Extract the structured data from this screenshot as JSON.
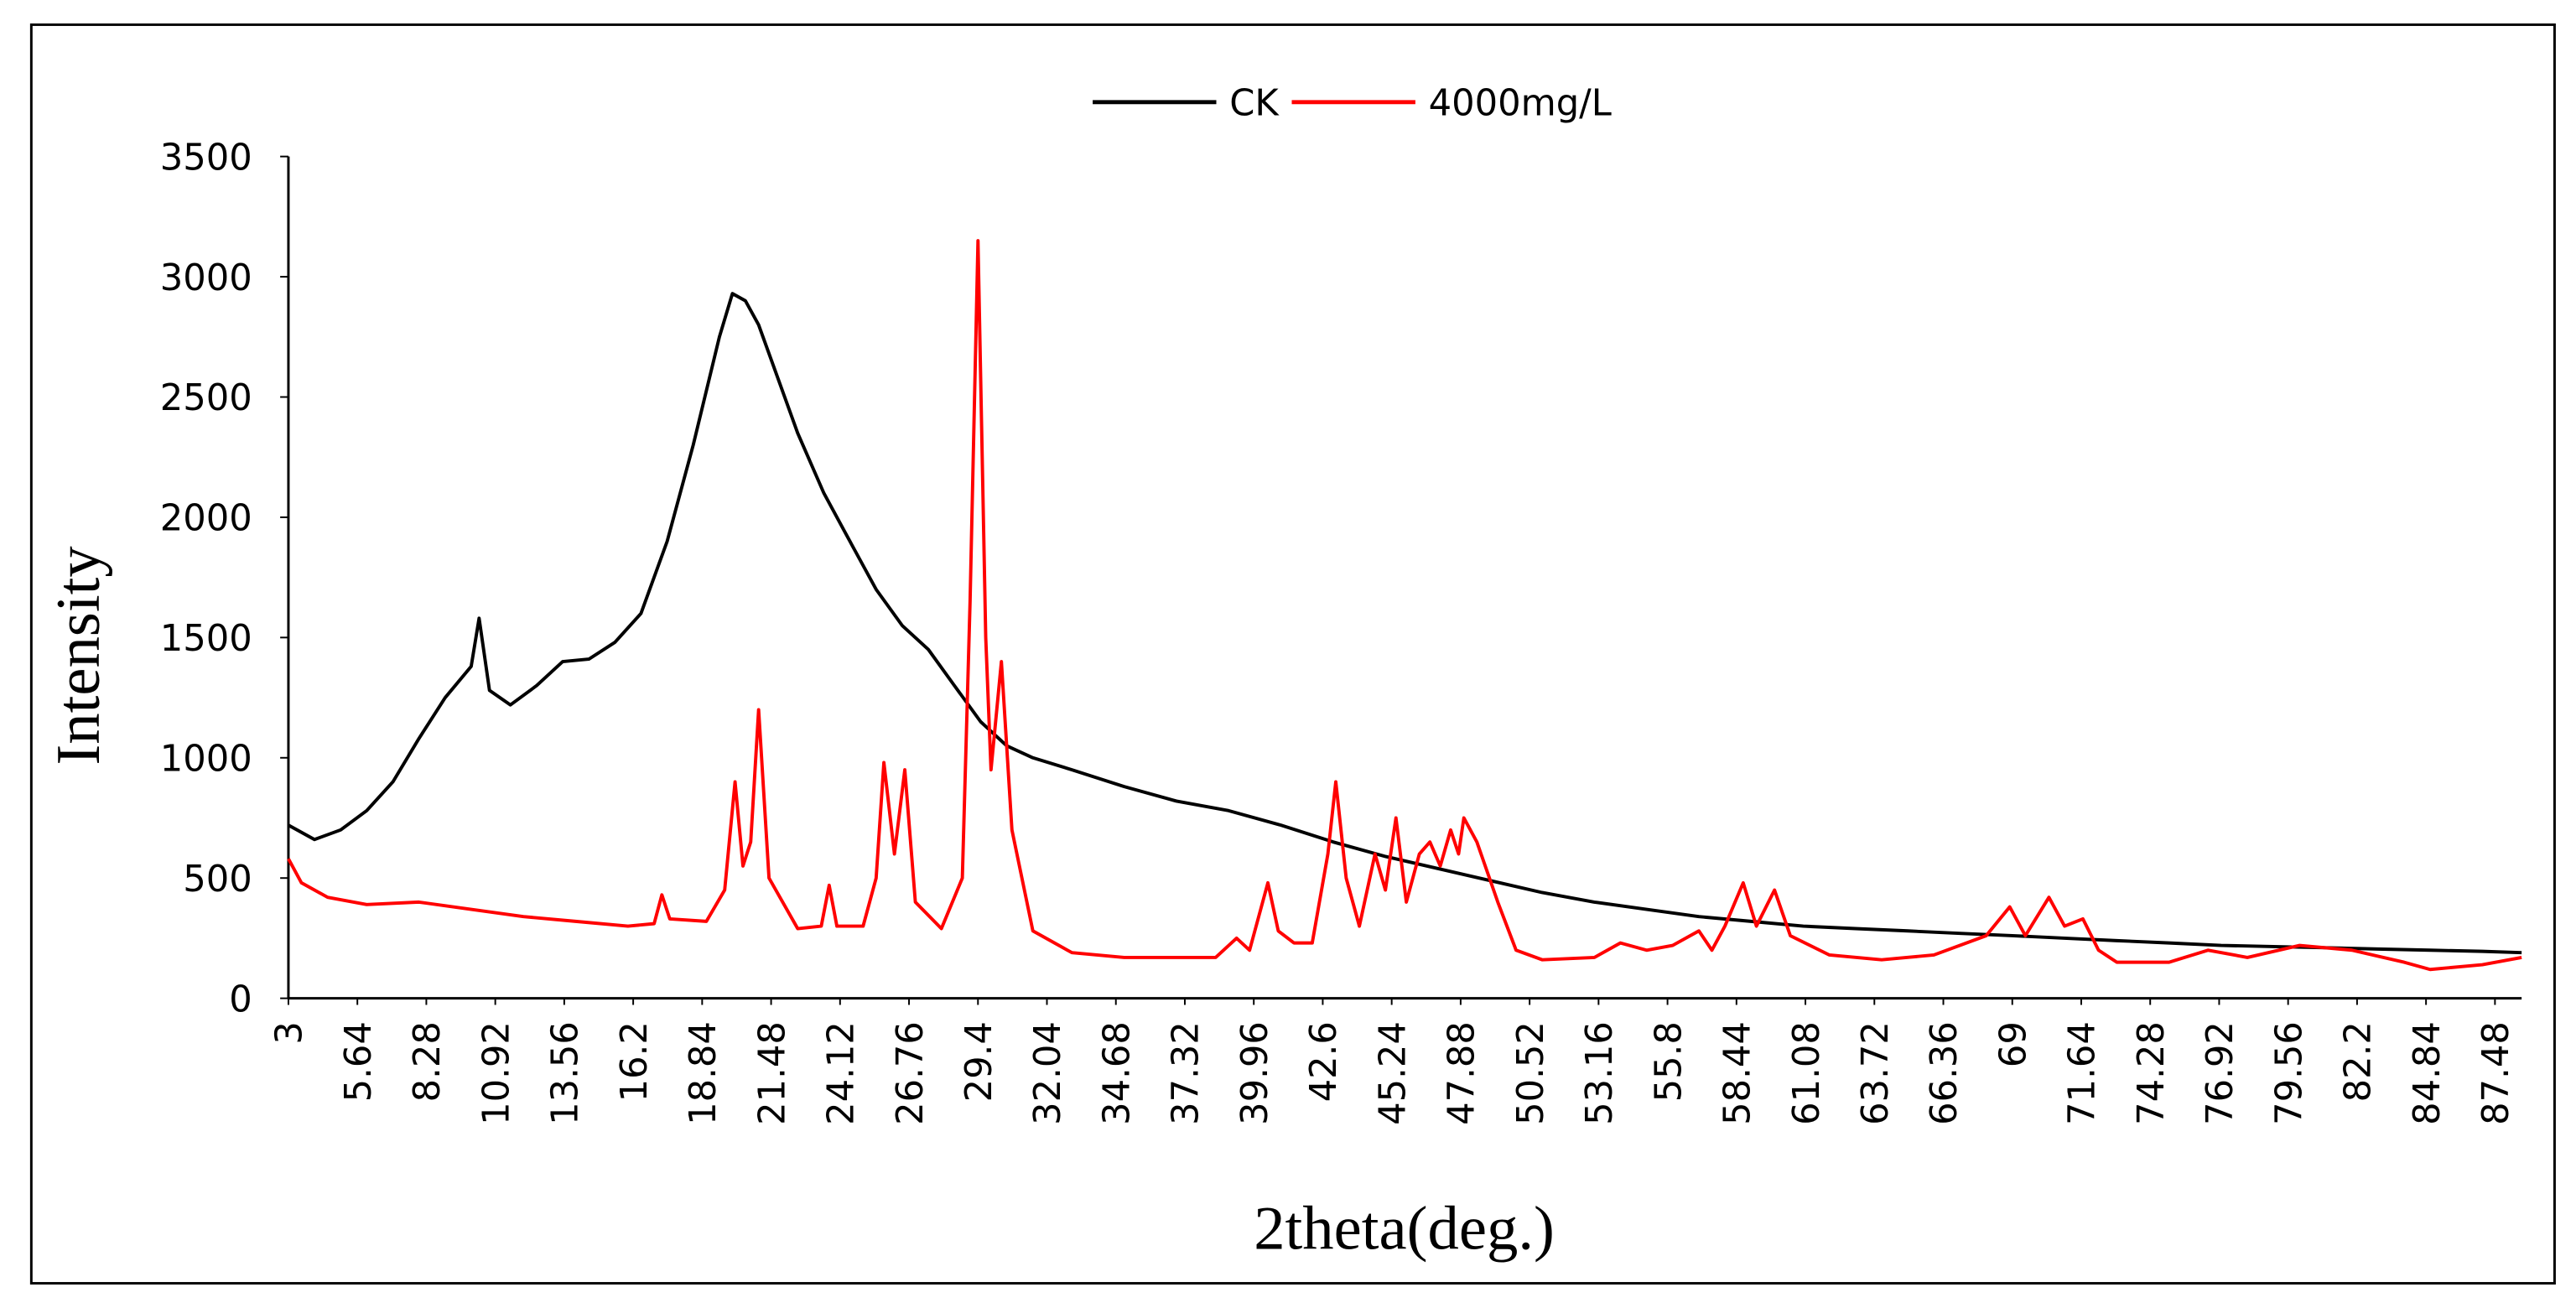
{
  "chart_data": {
    "type": "line",
    "xlabel": "2theta(deg.)",
    "ylabel": "Intensity",
    "xlim": [
      3,
      88.5
    ],
    "ylim": [
      0,
      3500
    ],
    "xticks": [
      3,
      5.64,
      8.28,
      10.92,
      13.56,
      16.2,
      18.84,
      21.48,
      24.12,
      26.76,
      29.4,
      32.04,
      34.68,
      37.32,
      39.96,
      42.6,
      45.24,
      47.88,
      50.52,
      53.16,
      55.8,
      58.44,
      61.08,
      63.72,
      66.36,
      69,
      71.64,
      74.28,
      76.92,
      79.56,
      82.2,
      84.84,
      87.48
    ],
    "yticks": [
      0,
      500,
      1000,
      1500,
      2000,
      2500,
      3000,
      3500
    ],
    "grid": false,
    "legend": "top",
    "series": [
      {
        "name": "CK",
        "color": "#000000",
        "x": [
          3,
          4,
          5,
          6,
          7,
          8,
          9,
          10,
          10.3,
          10.7,
          11.5,
          12.5,
          13.5,
          14.5,
          15.5,
          16.5,
          17.5,
          18.5,
          19.5,
          20,
          20.5,
          21,
          21.5,
          22.5,
          23.5,
          24.5,
          25.5,
          26.5,
          27.5,
          28.5,
          29.5,
          30.5,
          31.5,
          33,
          35,
          37,
          39,
          41,
          43,
          45,
          47,
          49,
          51,
          53,
          55,
          57,
          59,
          61,
          63,
          65,
          67,
          69,
          71,
          73,
          75,
          77,
          79,
          81,
          83,
          85,
          87,
          88.5
        ],
        "values": [
          720,
          660,
          700,
          780,
          900,
          1080,
          1250,
          1380,
          1580,
          1280,
          1220,
          1300,
          1400,
          1410,
          1480,
          1600,
          1900,
          2300,
          2750,
          2930,
          2900,
          2800,
          2650,
          2350,
          2100,
          1900,
          1700,
          1550,
          1450,
          1300,
          1150,
          1050,
          1000,
          950,
          880,
          820,
          780,
          720,
          650,
          590,
          540,
          490,
          440,
          400,
          370,
          340,
          320,
          300,
          290,
          280,
          270,
          260,
          250,
          240,
          230,
          220,
          215,
          210,
          205,
          200,
          195,
          190
        ]
      },
      {
        "name": "4000mg/L",
        "color": "#ff0000",
        "x": [
          3,
          3.5,
          4.5,
          6,
          8,
          10,
          12,
          14,
          16,
          17,
          17.3,
          17.6,
          19,
          19.7,
          20.1,
          20.4,
          20.7,
          21.0,
          21.4,
          22.5,
          23.4,
          23.7,
          24.0,
          25,
          25.5,
          25.8,
          26.2,
          26.6,
          27,
          28,
          28.8,
          29.1,
          29.4,
          29.7,
          29.9,
          30.3,
          30.7,
          31.5,
          33,
          35,
          37,
          38.5,
          39.3,
          39.8,
          40.5,
          40.9,
          41.5,
          42.2,
          42.8,
          43.1,
          43.5,
          44,
          44.6,
          45,
          45.4,
          45.8,
          46.3,
          46.7,
          47.1,
          47.5,
          47.8,
          48.0,
          48.5,
          49.3,
          50,
          51,
          53,
          54,
          55,
          56,
          57,
          57.5,
          58,
          58.7,
          59.2,
          59.9,
          60.5,
          62,
          64,
          66,
          68,
          68.9,
          69.5,
          70.4,
          71,
          71.7,
          72.3,
          73,
          75,
          76.5,
          78,
          80,
          82,
          84,
          85,
          87,
          88.5
        ],
        "values": [
          580,
          480,
          420,
          390,
          400,
          370,
          340,
          320,
          300,
          310,
          430,
          330,
          320,
          450,
          900,
          550,
          650,
          1200,
          500,
          290,
          300,
          470,
          300,
          300,
          500,
          980,
          600,
          950,
          400,
          290,
          500,
          1650,
          3150,
          1500,
          950,
          1400,
          700,
          280,
          190,
          170,
          170,
          170,
          250,
          200,
          480,
          280,
          230,
          230,
          600,
          900,
          500,
          300,
          600,
          450,
          750,
          400,
          600,
          650,
          550,
          700,
          600,
          750,
          650,
          400,
          200,
          160,
          170,
          230,
          200,
          220,
          280,
          200,
          300,
          480,
          300,
          450,
          260,
          180,
          160,
          180,
          260,
          380,
          260,
          420,
          300,
          330,
          200,
          150,
          150,
          200,
          170,
          220,
          200,
          150,
          120,
          140,
          170
        ]
      }
    ]
  }
}
